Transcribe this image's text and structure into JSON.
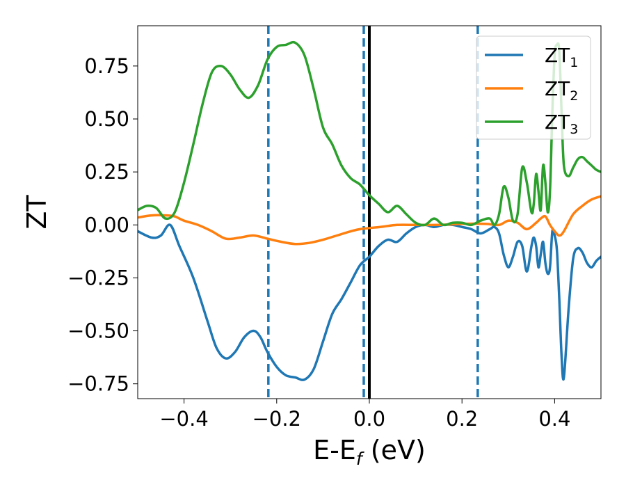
{
  "chart_data": {
    "type": "line",
    "title": "",
    "xlabel": "E-E",
    "xlabel_sub": "f",
    "xlabel_tail": " (eV)",
    "ylabel": "ZT",
    "xlim": [
      -0.5,
      0.5
    ],
    "ylim": [
      -0.82,
      0.94
    ],
    "xticks": [
      -0.4,
      -0.2,
      0.0,
      0.2,
      0.4
    ],
    "xtick_labels": [
      "−0.4",
      "−0.2",
      "0.0",
      "0.2",
      "0.4"
    ],
    "yticks": [
      -0.75,
      -0.5,
      -0.25,
      0.0,
      0.25,
      0.5,
      0.75
    ],
    "ytick_labels": [
      "−0.75",
      "−0.50",
      "−0.25",
      "0.00",
      "0.25",
      "0.50",
      "0.75"
    ],
    "grid": false,
    "legend_position": "top-right",
    "vlines": [
      {
        "x": -0.218,
        "style": "dashed",
        "color": "#1f77b4"
      },
      {
        "x": -0.012,
        "style": "dashed",
        "color": "#1f77b4"
      },
      {
        "x": 0.0,
        "style": "solid",
        "color": "#000000"
      },
      {
        "x": 0.234,
        "style": "dashed",
        "color": "#1f77b4"
      }
    ],
    "series": [
      {
        "name": "ZT",
        "sub": "1",
        "color": "#1f77b4",
        "x": [
          -0.5,
          -0.47,
          -0.45,
          -0.43,
          -0.41,
          -0.38,
          -0.35,
          -0.33,
          -0.31,
          -0.29,
          -0.27,
          -0.25,
          -0.235,
          -0.22,
          -0.2,
          -0.18,
          -0.16,
          -0.14,
          -0.12,
          -0.1,
          -0.08,
          -0.06,
          -0.04,
          -0.02,
          0.0,
          0.02,
          0.04,
          0.06,
          0.08,
          0.1,
          0.12,
          0.14,
          0.16,
          0.18,
          0.2,
          0.22,
          0.24,
          0.26,
          0.27,
          0.28,
          0.29,
          0.3,
          0.31,
          0.32,
          0.33,
          0.34,
          0.35,
          0.355,
          0.36,
          0.365,
          0.37,
          0.375,
          0.38,
          0.385,
          0.39,
          0.395,
          0.4,
          0.405,
          0.41,
          0.415,
          0.42,
          0.43,
          0.44,
          0.45,
          0.46,
          0.47,
          0.48,
          0.49,
          0.5
        ],
        "y": [
          -0.03,
          -0.06,
          -0.05,
          0.0,
          -0.1,
          -0.25,
          -0.45,
          -0.58,
          -0.63,
          -0.6,
          -0.53,
          -0.5,
          -0.53,
          -0.6,
          -0.67,
          -0.71,
          -0.72,
          -0.73,
          -0.68,
          -0.55,
          -0.42,
          -0.35,
          -0.27,
          -0.19,
          -0.15,
          -0.1,
          -0.07,
          -0.08,
          -0.04,
          -0.01,
          0.0,
          -0.01,
          0.0,
          0.0,
          -0.01,
          -0.02,
          -0.04,
          -0.02,
          -0.01,
          -0.04,
          -0.14,
          -0.2,
          -0.15,
          -0.08,
          -0.1,
          -0.22,
          -0.1,
          -0.06,
          -0.1,
          -0.2,
          -0.14,
          -0.08,
          -0.18,
          -0.23,
          -0.2,
          -0.03,
          -0.05,
          -0.12,
          -0.35,
          -0.62,
          -0.72,
          -0.4,
          -0.16,
          -0.11,
          -0.13,
          -0.18,
          -0.2,
          -0.17,
          -0.15
        ]
      },
      {
        "name": "ZT",
        "sub": "2",
        "color": "#ff7f0e",
        "x": [
          -0.5,
          -0.47,
          -0.44,
          -0.42,
          -0.4,
          -0.37,
          -0.34,
          -0.31,
          -0.28,
          -0.25,
          -0.22,
          -0.19,
          -0.16,
          -0.13,
          -0.1,
          -0.07,
          -0.04,
          -0.02,
          0.0,
          0.03,
          0.06,
          0.1,
          0.15,
          0.2,
          0.25,
          0.28,
          0.3,
          0.32,
          0.34,
          0.36,
          0.37,
          0.38,
          0.39,
          0.4,
          0.41,
          0.42,
          0.44,
          0.46,
          0.48,
          0.5
        ],
        "y": [
          0.035,
          0.045,
          0.045,
          0.04,
          0.02,
          0.0,
          -0.03,
          -0.065,
          -0.06,
          -0.05,
          -0.065,
          -0.08,
          -0.09,
          -0.085,
          -0.07,
          -0.05,
          -0.03,
          -0.02,
          -0.015,
          -0.008,
          0.0,
          0.0,
          0.0,
          0.005,
          0.005,
          0.0,
          0.02,
          0.01,
          -0.02,
          0.01,
          0.03,
          0.04,
          0.0,
          -0.03,
          -0.05,
          -0.03,
          0.05,
          0.09,
          0.12,
          0.135
        ]
      },
      {
        "name": "ZT",
        "sub": "3",
        "color": "#2ca02c",
        "x": [
          -0.5,
          -0.48,
          -0.46,
          -0.44,
          -0.42,
          -0.4,
          -0.38,
          -0.36,
          -0.34,
          -0.32,
          -0.3,
          -0.28,
          -0.26,
          -0.24,
          -0.22,
          -0.2,
          -0.18,
          -0.16,
          -0.14,
          -0.12,
          -0.1,
          -0.08,
          -0.06,
          -0.04,
          -0.02,
          0.0,
          0.02,
          0.04,
          0.06,
          0.08,
          0.1,
          0.12,
          0.14,
          0.16,
          0.18,
          0.2,
          0.22,
          0.24,
          0.26,
          0.27,
          0.28,
          0.29,
          0.3,
          0.31,
          0.32,
          0.33,
          0.34,
          0.35,
          0.355,
          0.36,
          0.365,
          0.37,
          0.375,
          0.38,
          0.385,
          0.39,
          0.395,
          0.4,
          0.405,
          0.41,
          0.415,
          0.42,
          0.43,
          0.44,
          0.45,
          0.46,
          0.47,
          0.48,
          0.49,
          0.5
        ],
        "y": [
          0.07,
          0.09,
          0.08,
          0.03,
          0.06,
          0.2,
          0.38,
          0.57,
          0.72,
          0.75,
          0.71,
          0.64,
          0.6,
          0.66,
          0.78,
          0.84,
          0.85,
          0.86,
          0.8,
          0.64,
          0.46,
          0.38,
          0.28,
          0.22,
          0.19,
          0.14,
          0.1,
          0.06,
          0.09,
          0.05,
          0.01,
          0.0,
          0.03,
          0.0,
          0.01,
          0.01,
          0.0,
          0.02,
          0.03,
          0.0,
          0.05,
          0.18,
          0.13,
          0.02,
          0.05,
          0.27,
          0.2,
          0.06,
          0.1,
          0.24,
          0.16,
          0.07,
          0.28,
          0.2,
          0.06,
          0.16,
          0.53,
          0.8,
          0.85,
          0.82,
          0.53,
          0.28,
          0.23,
          0.27,
          0.31,
          0.32,
          0.3,
          0.28,
          0.26,
          0.25
        ]
      }
    ]
  }
}
